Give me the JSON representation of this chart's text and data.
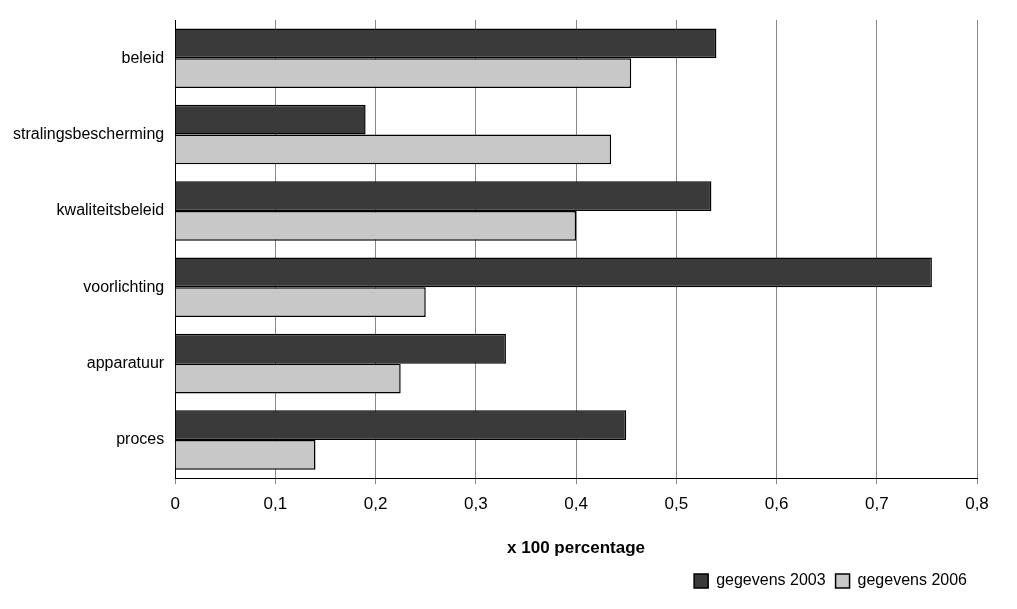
{
  "chart_data": {
    "type": "bar",
    "orientation": "horizontal",
    "xlabel": "x 100 percentage",
    "categories": [
      "beleid",
      "stralingsbescherming",
      "kwaliteitsbeleid",
      "voorlichting",
      "apparatuur",
      "proces"
    ],
    "series": [
      {
        "name": "gegevens 2003",
        "color": "#3a3a3a",
        "values": [
          0.54,
          0.19,
          0.535,
          0.755,
          0.33,
          0.45
        ]
      },
      {
        "name": "gegevens 2006",
        "color": "#c8c8c8",
        "values": [
          0.455,
          0.435,
          0.4,
          0.25,
          0.225,
          0.14
        ]
      }
    ],
    "xlim": [
      0,
      0.8
    ],
    "xticks": [
      {
        "value": 0,
        "label": "0"
      },
      {
        "value": 0.1,
        "label": "0,1"
      },
      {
        "value": 0.2,
        "label": "0,2"
      },
      {
        "value": 0.3,
        "label": "0,3"
      },
      {
        "value": 0.4,
        "label": "0,4"
      },
      {
        "value": 0.5,
        "label": "0,5"
      },
      {
        "value": 0.6,
        "label": "0,6"
      },
      {
        "value": 0.7,
        "label": "0,7"
      },
      {
        "value": 0.8,
        "label": "0,8"
      }
    ],
    "grid": "x",
    "legend": "bottom right"
  }
}
